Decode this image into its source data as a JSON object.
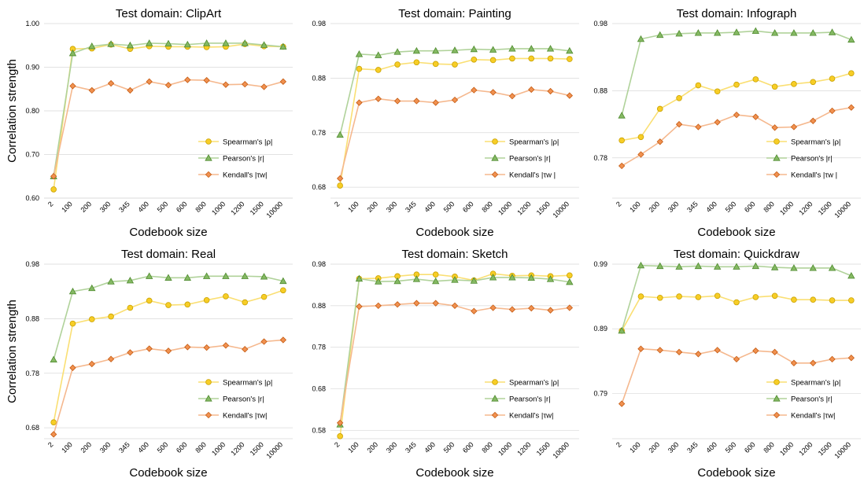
{
  "chart_data": [
    {
      "type": "line",
      "title": "Test domain: ClipArt",
      "xlabel": "Codebook size",
      "ylabel": "Correlation strength",
      "categories": [
        "2",
        "100",
        "200",
        "300",
        "345",
        "400",
        "500",
        "600",
        "800",
        "1000",
        "1200",
        "1500",
        "10000"
      ],
      "yticks": [
        "0.60",
        "0.70",
        "0.80",
        "0.90",
        "1.00"
      ],
      "ylim": [
        0.6,
        1.0
      ],
      "grid": true,
      "legend_position": "bottom-right",
      "series": [
        {
          "name": "Spearman's |ρ|",
          "marker": "circle",
          "color": "#f5c400",
          "values": [
            0.62,
            0.942,
            0.943,
            0.952,
            0.942,
            0.948,
            0.947,
            0.947,
            0.946,
            0.947,
            0.953,
            0.948,
            0.947
          ]
        },
        {
          "name": "Pearson's |r|",
          "marker": "triangle",
          "color": "#70ad47",
          "values": [
            0.65,
            0.932,
            0.948,
            0.953,
            0.95,
            0.955,
            0.954,
            0.952,
            0.955,
            0.955,
            0.955,
            0.951,
            0.947
          ]
        },
        {
          "name": "Kendall's |τw|",
          "marker": "diamond",
          "color": "#ed7d31",
          "values": [
            0.65,
            0.857,
            0.847,
            0.863,
            0.847,
            0.867,
            0.859,
            0.871,
            0.87,
            0.86,
            0.861,
            0.855,
            0.867
          ]
        }
      ]
    },
    {
      "type": "line",
      "title": "Test domain: Painting",
      "xlabel": "Codebook size",
      "ylabel": "",
      "categories": [
        "2",
        "100",
        "200",
        "300",
        "345",
        "400",
        "500",
        "600",
        "800",
        "1000",
        "1200",
        "1500",
        "10000"
      ],
      "yticks": [
        "0.68",
        "0.78",
        "0.88",
        "0.98"
      ],
      "ylim": [
        0.66,
        0.98
      ],
      "grid": true,
      "legend_position": "bottom-right",
      "series": [
        {
          "name": "Spearman's |ρ|",
          "marker": "circle",
          "color": "#f5c400",
          "values": [
            0.683,
            0.897,
            0.895,
            0.905,
            0.909,
            0.906,
            0.905,
            0.914,
            0.913,
            0.916,
            0.916,
            0.916,
            0.915
          ]
        },
        {
          "name": "Pearson's |r|",
          "marker": "triangle",
          "color": "#70ad47",
          "values": [
            0.776,
            0.924,
            0.922,
            0.928,
            0.93,
            0.93,
            0.931,
            0.933,
            0.932,
            0.934,
            0.934,
            0.934,
            0.93
          ]
        },
        {
          "name": "Kendall's |τw |",
          "marker": "diamond",
          "color": "#ed7d31",
          "values": [
            0.696,
            0.835,
            0.842,
            0.838,
            0.838,
            0.835,
            0.84,
            0.858,
            0.854,
            0.847,
            0.859,
            0.856,
            0.848
          ]
        }
      ]
    },
    {
      "type": "line",
      "title": "Test domain: Infograph",
      "xlabel": "Codebook size",
      "ylabel": "",
      "categories": [
        "2",
        "100",
        "200",
        "300",
        "345",
        "400",
        "500",
        "600",
        "800",
        "1000",
        "1200",
        "1500",
        "10000"
      ],
      "yticks": [
        "0.78",
        "0.88",
        "0.98"
      ],
      "ylim": [
        0.72,
        0.98
      ],
      "grid": true,
      "legend_position": "bottom-right",
      "series": [
        {
          "name": "Spearman's |ρ|",
          "marker": "circle",
          "color": "#f5c400",
          "values": [
            0.806,
            0.811,
            0.853,
            0.869,
            0.888,
            0.879,
            0.889,
            0.897,
            0.886,
            0.89,
            0.893,
            0.898,
            0.906
          ]
        },
        {
          "name": "Pearson's |r|",
          "marker": "triangle",
          "color": "#70ad47",
          "values": [
            0.843,
            0.957,
            0.963,
            0.965,
            0.966,
            0.966,
            0.967,
            0.969,
            0.966,
            0.966,
            0.966,
            0.967,
            0.956
          ]
        },
        {
          "name": "Kendall's |τw |",
          "marker": "diamond",
          "color": "#ed7d31",
          "values": [
            0.768,
            0.785,
            0.804,
            0.83,
            0.826,
            0.833,
            0.844,
            0.841,
            0.825,
            0.826,
            0.835,
            0.85,
            0.855
          ]
        }
      ]
    },
    {
      "type": "line",
      "title": "Test domain: Real",
      "xlabel": "Codebook size",
      "ylabel": "Correlation strength",
      "categories": [
        "2",
        "100",
        "200",
        "300",
        "345",
        "400",
        "500",
        "600",
        "800",
        "1000",
        "1200",
        "1500",
        "10000"
      ],
      "yticks": [
        "0.68",
        "0.78",
        "0.88",
        "0.98"
      ],
      "ylim": [
        0.66,
        0.98
      ],
      "grid": true,
      "legend_position": "bottom-right",
      "series": [
        {
          "name": "Spearman's |ρ|",
          "marker": "circle",
          "color": "#f5c400",
          "values": [
            0.69,
            0.871,
            0.879,
            0.884,
            0.9,
            0.913,
            0.905,
            0.906,
            0.914,
            0.921,
            0.91,
            0.92,
            0.932
          ]
        },
        {
          "name": "Pearson's |r|",
          "marker": "triangle",
          "color": "#70ad47",
          "values": [
            0.805,
            0.93,
            0.936,
            0.948,
            0.95,
            0.958,
            0.955,
            0.955,
            0.958,
            0.958,
            0.958,
            0.957,
            0.949
          ]
        },
        {
          "name": "Kendall's |τw|",
          "marker": "diamond",
          "color": "#ed7d31",
          "values": [
            0.668,
            0.79,
            0.797,
            0.806,
            0.818,
            0.825,
            0.821,
            0.828,
            0.827,
            0.831,
            0.824,
            0.838,
            0.841
          ]
        }
      ]
    },
    {
      "type": "line",
      "title": "Test domain: Sketch",
      "xlabel": "Codebook size",
      "ylabel": "",
      "categories": [
        "2",
        "100",
        "200",
        "300",
        "345",
        "400",
        "500",
        "600",
        "800",
        "1000",
        "1200",
        "1500",
        "10000"
      ],
      "yticks": [
        "0.58",
        "0.68",
        "0.78",
        "0.88",
        "0.98"
      ],
      "ylim": [
        0.56,
        0.98
      ],
      "grid": true,
      "legend_position": "bottom-right",
      "series": [
        {
          "name": "Spearman's |ρ|",
          "marker": "circle",
          "color": "#f5c400",
          "values": [
            0.566,
            0.945,
            0.946,
            0.951,
            0.955,
            0.955,
            0.95,
            0.941,
            0.957,
            0.952,
            0.953,
            0.951,
            0.953
          ]
        },
        {
          "name": "Pearson's |r|",
          "marker": "triangle",
          "color": "#70ad47",
          "values": [
            0.594,
            0.945,
            0.938,
            0.939,
            0.944,
            0.939,
            0.942,
            0.94,
            0.948,
            0.948,
            0.947,
            0.944,
            0.937
          ]
        },
        {
          "name": "Kendall's |τw|",
          "marker": "diamond",
          "color": "#ed7d31",
          "values": [
            0.598,
            0.878,
            0.88,
            0.883,
            0.886,
            0.886,
            0.88,
            0.867,
            0.875,
            0.871,
            0.874,
            0.869,
            0.875
          ]
        }
      ]
    },
    {
      "type": "line",
      "title": "Test domain: Quickdraw",
      "xlabel": "Codebook size",
      "ylabel": "",
      "categories": [
        "2",
        "100",
        "200",
        "300",
        "345",
        "400",
        "500",
        "600",
        "800",
        "1000",
        "1200",
        "1500",
        "10000"
      ],
      "yticks": [
        "0.79",
        "0.89",
        "0.99"
      ],
      "ylim": [
        0.72,
        0.99
      ],
      "grid": true,
      "legend_position": "bottom-right",
      "series": [
        {
          "name": "Spearman's |ρ|",
          "marker": "circle",
          "color": "#f5c400",
          "values": [
            0.887,
            0.94,
            0.938,
            0.94,
            0.939,
            0.941,
            0.931,
            0.939,
            0.941,
            0.935,
            0.935,
            0.934,
            0.934
          ]
        },
        {
          "name": "Pearson's |r|",
          "marker": "triangle",
          "color": "#70ad47",
          "values": [
            0.887,
            0.988,
            0.987,
            0.986,
            0.987,
            0.986,
            0.986,
            0.987,
            0.985,
            0.984,
            0.984,
            0.984,
            0.972
          ]
        },
        {
          "name": "Kendall's |τw|",
          "marker": "diamond",
          "color": "#ed7d31",
          "values": [
            0.774,
            0.859,
            0.857,
            0.854,
            0.851,
            0.857,
            0.843,
            0.856,
            0.854,
            0.837,
            0.837,
            0.843,
            0.845
          ]
        }
      ]
    }
  ]
}
